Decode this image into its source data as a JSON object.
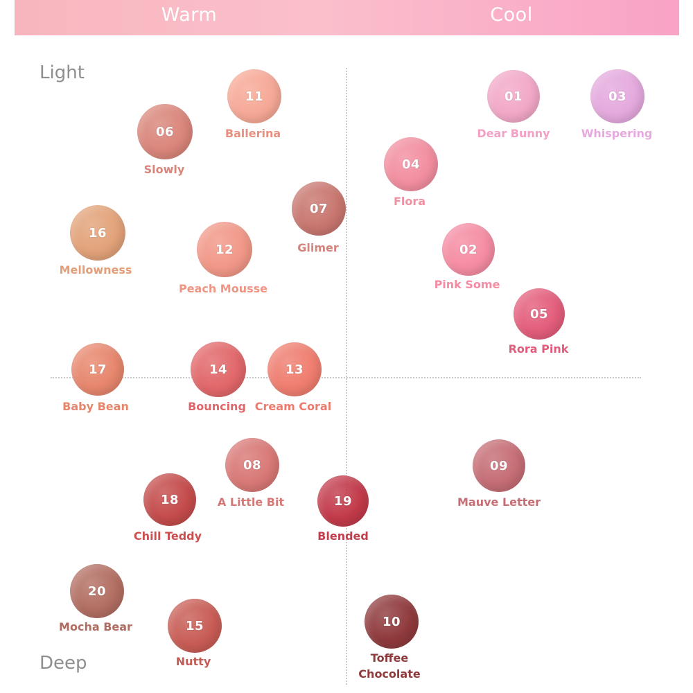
{
  "header": {
    "warm": "Warm",
    "cool": "Cool"
  },
  "axes": {
    "light": "Light",
    "deep": "Deep"
  },
  "shades": [
    {
      "num": "11",
      "name": "Ballerina",
      "color": "#f6a896",
      "label_color": "#e8907f"
    },
    {
      "num": "06",
      "name": "Slowly",
      "color": "#d9857a",
      "label_color": "#d8867a"
    },
    {
      "num": "07",
      "name": "Glimer",
      "color": "#c8766f",
      "label_color": "#d3847c"
    },
    {
      "num": "16",
      "name": "Mellowness",
      "color": "#e2a279",
      "label_color": "#e29f7a"
    },
    {
      "num": "12",
      "name": "Peach Mousse",
      "color": "#f19787",
      "label_color": "#f09584"
    },
    {
      "num": "01",
      "name": "Dear Bunny",
      "color": "#f2a8c8",
      "label_color": "#f4a0c4"
    },
    {
      "num": "03",
      "name": "Whispering",
      "color": "#e4a9dd",
      "label_color": "#e6a8dd"
    },
    {
      "num": "04",
      "name": "Flora",
      "color": "#f28ea0",
      "label_color": "#f190a0"
    },
    {
      "num": "02",
      "name": "Pink Some",
      "color": "#f58ca3",
      "label_color": "#f58ca2"
    },
    {
      "num": "05",
      "name": "Rora Pink",
      "color": "#e35d7b",
      "label_color": "#e35b7a"
    },
    {
      "num": "17",
      "name": "Baby Bean",
      "color": "#e7866d",
      "label_color": "#e5866c"
    },
    {
      "num": "14",
      "name": "Bouncing",
      "color": "#e1676a",
      "label_color": "#e0666a"
    },
    {
      "num": "13",
      "name": "Cream Coral",
      "color": "#ef7d6f",
      "label_color": "#ee7a6d"
    },
    {
      "num": "08",
      "name": "A Little Bit",
      "color": "#d87876",
      "label_color": "#d67776"
    },
    {
      "num": "18",
      "name": "Chill Teddy",
      "color": "#c44b4b",
      "label_color": "#c9504e"
    },
    {
      "num": "19",
      "name": "Blended",
      "color": "#c23a4a",
      "label_color": "#c23e4d"
    },
    {
      "num": "09",
      "name": "Mauve Letter",
      "color": "#c56d75",
      "label_color": "#c46e74"
    },
    {
      "num": "20",
      "name": "Mocha Bear",
      "color": "#b26e62",
      "label_color": "#b16c62"
    },
    {
      "num": "15",
      "name": "Nutty",
      "color": "#c85c55",
      "label_color": "#c45d55"
    },
    {
      "num": "10",
      "name_line1": "Toffee",
      "name_line2": "Chocolate",
      "color": "#8f3a3c",
      "label_color": "#8e3b3c"
    }
  ]
}
